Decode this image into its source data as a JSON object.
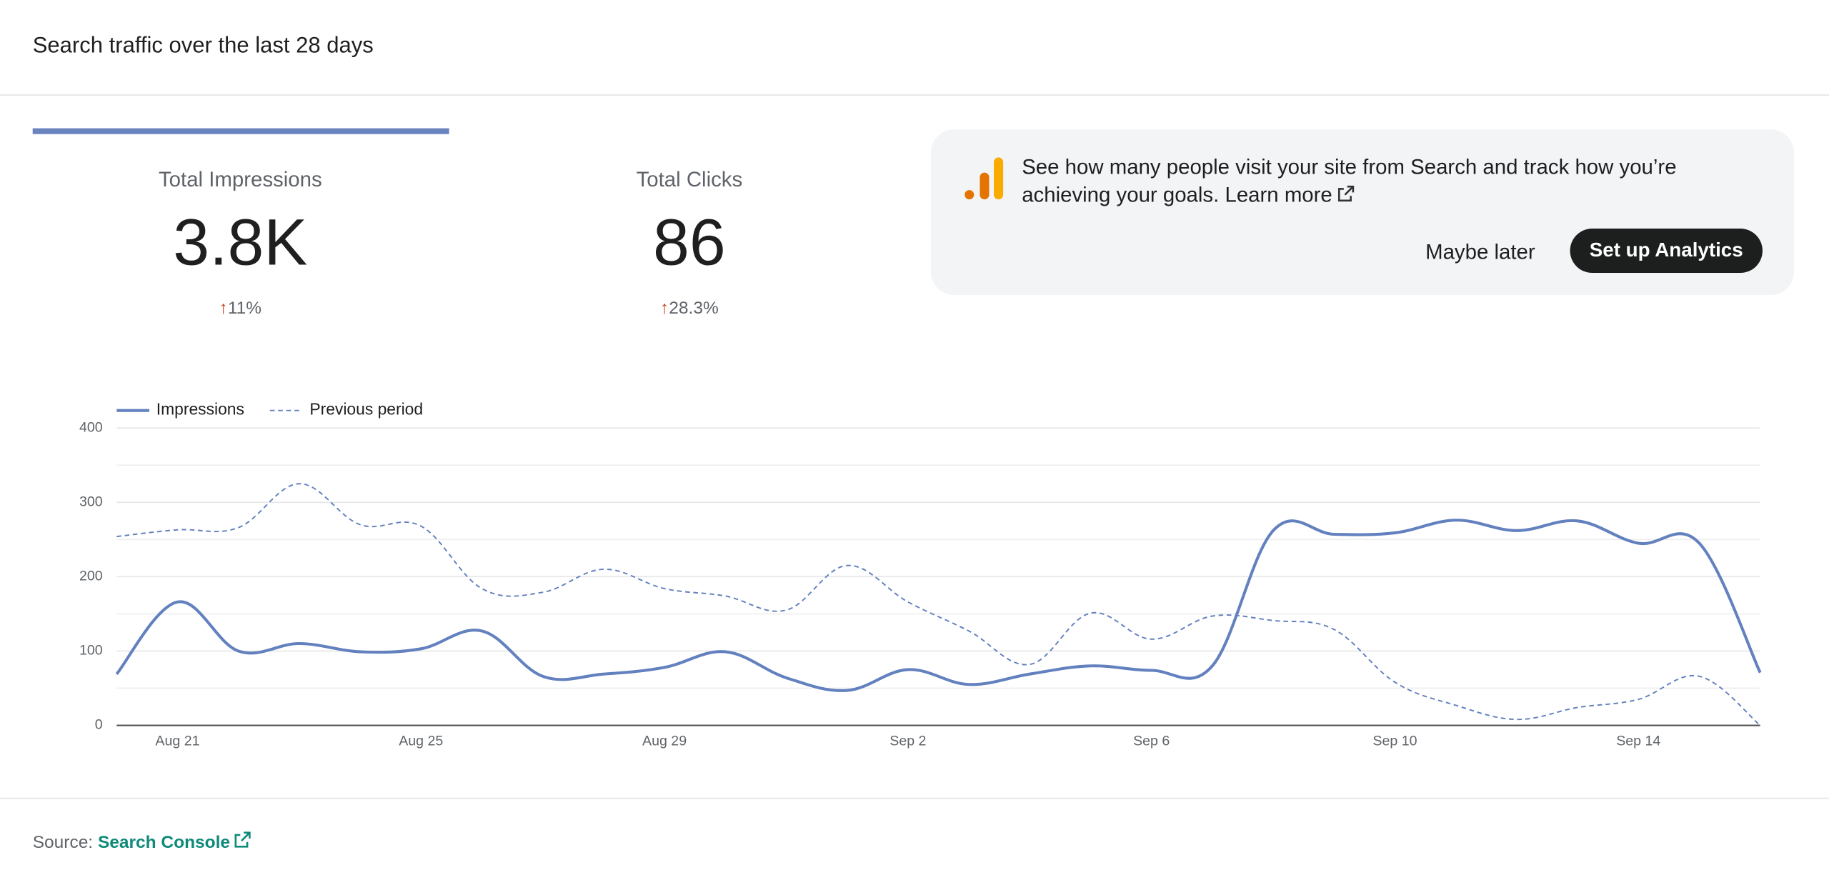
{
  "header": {
    "title": "Search traffic over the last 28 days"
  },
  "stats": [
    {
      "label": "Total Impressions",
      "value": "3.8K",
      "change": "11%"
    },
    {
      "label": "Total Clicks",
      "value": "86",
      "change": "28.3%"
    }
  ],
  "banner": {
    "text": "See how many people visit your site from Search and track how you’re achieving your goals.",
    "link": "Learn more",
    "secondary_button": "Maybe later",
    "primary_button": "Set up Analytics"
  },
  "footer": {
    "label": "Source:",
    "link": "Search Console"
  },
  "chart_data": {
    "type": "line",
    "categories": [
      null,
      "Aug 21",
      null,
      null,
      null,
      "Aug 25",
      null,
      null,
      null,
      "Aug 29",
      null,
      null,
      null,
      "Sep 2",
      null,
      null,
      null,
      "Sep 6",
      null,
      null,
      null,
      "Sep 10",
      null,
      null,
      null,
      "Sep 14",
      null,
      null
    ],
    "series": [
      {
        "name": "Impressions",
        "color": "#6381bf",
        "style": "solid",
        "values": [
          69,
          166,
          100,
          110,
          99,
          103,
          127,
          66,
          69,
          78,
          99,
          64,
          47,
          75,
          55,
          69,
          80,
          74,
          80,
          262,
          257,
          259,
          276,
          262,
          275,
          245,
          245,
          71
        ]
      },
      {
        "name": "Previous period",
        "color": "#6381bf",
        "style": "dashed",
        "values": [
          254,
          263,
          266,
          325,
          270,
          268,
          184,
          179,
          210,
          184,
          174,
          155,
          215,
          166,
          127,
          82,
          151,
          116,
          147,
          141,
          129,
          58,
          27,
          8,
          24,
          35,
          66,
          0
        ]
      }
    ],
    "ylim": [
      0,
      400
    ],
    "yticks": [
      0,
      100,
      200,
      300,
      400
    ],
    "grid": true,
    "legend": "top-left"
  }
}
